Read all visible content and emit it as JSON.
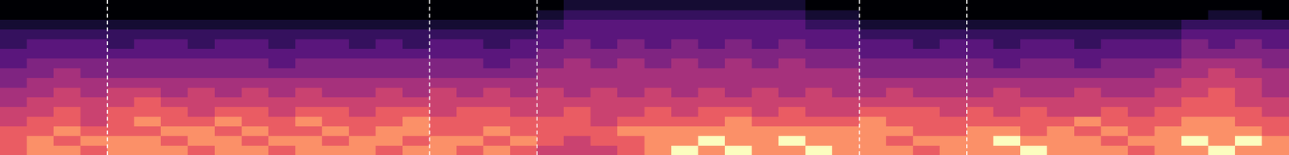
{
  "chart_data": {
    "type": "heatmap",
    "xlim": [
      0,
      48
    ],
    "ylim": [
      0,
      16
    ],
    "zlim": [
      0,
      9
    ],
    "tick_labels": false,
    "grid": false,
    "cells": [
      [
        7,
        8,
        8,
        7,
        8,
        8,
        8,
        7,
        8,
        8,
        7,
        8,
        8,
        8,
        7,
        8,
        8,
        7,
        8,
        7,
        6,
        6,
        6,
        7,
        8,
        9,
        8,
        9,
        8,
        8,
        9,
        8,
        8,
        8,
        7,
        8,
        8,
        8,
        9,
        8,
        8,
        8,
        7,
        8,
        8,
        9,
        8,
        8
      ],
      [
        7,
        8,
        7,
        8,
        8,
        8,
        7,
        8,
        8,
        7,
        8,
        8,
        7,
        8,
        8,
        7,
        8,
        8,
        7,
        8,
        7,
        6,
        7,
        7,
        8,
        8,
        9,
        8,
        8,
        9,
        8,
        8,
        8,
        7,
        8,
        8,
        8,
        9,
        8,
        8,
        8,
        7,
        8,
        8,
        9,
        8,
        9,
        8
      ],
      [
        7,
        7,
        8,
        7,
        7,
        7,
        8,
        8,
        7,
        8,
        7,
        7,
        8,
        7,
        8,
        8,
        7,
        7,
        8,
        7,
        7,
        7,
        7,
        8,
        8,
        8,
        8,
        8,
        8,
        8,
        8,
        8,
        8,
        8,
        7,
        7,
        8,
        8,
        7,
        8,
        7,
        8,
        7,
        8,
        8,
        8,
        8,
        7
      ],
      [
        6,
        7,
        7,
        6,
        7,
        8,
        7,
        7,
        8,
        7,
        7,
        8,
        7,
        7,
        7,
        8,
        7,
        7,
        7,
        7,
        7,
        7,
        6,
        7,
        7,
        7,
        7,
        8,
        7,
        7,
        7,
        7,
        8,
        7,
        7,
        7,
        7,
        7,
        7,
        7,
        8,
        7,
        7,
        7,
        8,
        8,
        7,
        7
      ],
      [
        6,
        6,
        7,
        6,
        7,
        7,
        7,
        6,
        7,
        7,
        6,
        7,
        7,
        6,
        7,
        7,
        6,
        7,
        7,
        6,
        6,
        7,
        6,
        6,
        7,
        6,
        7,
        7,
        6,
        7,
        6,
        6,
        7,
        7,
        7,
        6,
        7,
        6,
        7,
        6,
        6,
        7,
        6,
        7,
        7,
        7,
        7,
        6
      ],
      [
        5,
        6,
        6,
        6,
        6,
        7,
        6,
        6,
        6,
        6,
        6,
        6,
        6,
        6,
        6,
        6,
        6,
        6,
        6,
        6,
        6,
        6,
        6,
        6,
        6,
        6,
        6,
        6,
        6,
        6,
        6,
        6,
        6,
        6,
        6,
        6,
        6,
        6,
        6,
        6,
        6,
        6,
        6,
        6,
        7,
        7,
        6,
        6
      ],
      [
        5,
        5,
        6,
        5,
        6,
        6,
        5,
        6,
        5,
        6,
        5,
        6,
        5,
        5,
        6,
        5,
        6,
        5,
        6,
        5,
        6,
        5,
        6,
        5,
        6,
        5,
        6,
        5,
        6,
        5,
        6,
        5,
        5,
        6,
        5,
        5,
        5,
        6,
        5,
        5,
        6,
        5,
        5,
        6,
        6,
        7,
        6,
        5
      ],
      [
        4,
        5,
        5,
        5,
        5,
        5,
        5,
        5,
        5,
        5,
        5,
        5,
        5,
        5,
        5,
        5,
        5,
        5,
        5,
        5,
        5,
        5,
        5,
        5,
        5,
        5,
        5,
        5,
        5,
        5,
        5,
        5,
        5,
        5,
        5,
        5,
        5,
        5,
        5,
        5,
        5,
        5,
        5,
        5,
        6,
        6,
        6,
        5
      ],
      [
        4,
        4,
        5,
        4,
        4,
        4,
        4,
        4,
        4,
        4,
        4,
        4,
        4,
        4,
        4,
        4,
        4,
        4,
        4,
        4,
        5,
        5,
        5,
        5,
        5,
        5,
        5,
        5,
        5,
        5,
        5,
        5,
        4,
        4,
        4,
        4,
        4,
        4,
        4,
        4,
        4,
        4,
        4,
        5,
        5,
        6,
        5,
        5
      ],
      [
        3,
        4,
        4,
        4,
        4,
        4,
        4,
        4,
        4,
        4,
        3,
        4,
        4,
        4,
        4,
        4,
        4,
        4,
        3,
        4,
        4,
        5,
        4,
        5,
        4,
        5,
        4,
        5,
        4,
        5,
        4,
        4,
        4,
        4,
        4,
        4,
        4,
        3,
        4,
        4,
        3,
        4,
        4,
        4,
        5,
        5,
        5,
        4
      ],
      [
        3,
        3,
        3,
        3,
        3,
        3,
        3,
        3,
        3,
        3,
        3,
        3,
        3,
        3,
        3,
        3,
        3,
        3,
        3,
        3,
        4,
        4,
        4,
        4,
        4,
        4,
        4,
        4,
        4,
        4,
        4,
        4,
        3,
        3,
        3,
        3,
        3,
        3,
        3,
        3,
        3,
        3,
        3,
        3,
        4,
        4,
        4,
        4
      ],
      [
        2,
        3,
        3,
        3,
        2,
        3,
        3,
        2,
        3,
        3,
        2,
        3,
        3,
        2,
        3,
        2,
        3,
        3,
        2,
        3,
        3,
        4,
        3,
        4,
        3,
        4,
        3,
        4,
        3,
        4,
        3,
        3,
        3,
        3,
        2,
        3,
        3,
        2,
        3,
        3,
        2,
        3,
        3,
        3,
        4,
        3,
        4,
        3
      ],
      [
        2,
        2,
        2,
        2,
        2,
        2,
        2,
        2,
        2,
        2,
        2,
        2,
        2,
        2,
        2,
        2,
        2,
        2,
        2,
        2,
        3,
        3,
        3,
        3,
        3,
        3,
        3,
        3,
        3,
        3,
        3,
        3,
        2,
        2,
        2,
        2,
        2,
        2,
        2,
        2,
        2,
        2,
        2,
        2,
        3,
        3,
        3,
        3
      ],
      [
        1,
        1,
        1,
        1,
        1,
        1,
        1,
        1,
        1,
        1,
        1,
        1,
        1,
        1,
        1,
        1,
        1,
        1,
        1,
        1,
        2,
        3,
        3,
        3,
        3,
        3,
        3,
        3,
        3,
        3,
        2,
        2,
        1,
        1,
        1,
        1,
        1,
        1,
        1,
        1,
        1,
        1,
        1,
        1,
        2,
        2,
        2,
        2
      ],
      [
        0,
        0,
        0,
        0,
        0,
        0,
        0,
        0,
        0,
        0,
        0,
        0,
        0,
        0,
        0,
        0,
        0,
        0,
        0,
        0,
        1,
        2,
        2,
        2,
        2,
        2,
        2,
        2,
        2,
        2,
        1,
        1,
        0,
        0,
        0,
        0,
        0,
        0,
        0,
        0,
        0,
        0,
        0,
        0,
        0,
        1,
        1,
        0
      ],
      [
        0,
        0,
        0,
        0,
        0,
        0,
        0,
        0,
        0,
        0,
        0,
        0,
        0,
        0,
        0,
        0,
        0,
        0,
        0,
        0,
        0,
        1,
        1,
        1,
        1,
        1,
        1,
        1,
        1,
        1,
        0,
        0,
        0,
        0,
        0,
        0,
        0,
        0,
        0,
        0,
        0,
        0,
        0,
        0,
        0,
        0,
        0,
        0
      ]
    ],
    "vlines": {
      "x": [
        4,
        16,
        20,
        32,
        36
      ],
      "color": "#ffffff",
      "line_style": "dashed"
    }
  }
}
